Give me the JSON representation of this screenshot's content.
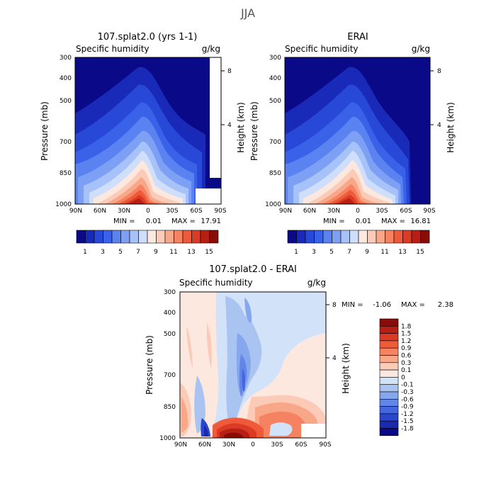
{
  "suptitle": "JJA",
  "chart_data": [
    {
      "type": "heatmap",
      "title": "107.splat2.0 (yrs 1-1)",
      "subtitle_left": "Specific humidity",
      "subtitle_right": "g/kg",
      "ylabel": "Pressure (mb)",
      "ylabel_right": "Height (km)",
      "x_ticks": [
        "90N",
        "60N",
        "30N",
        "0",
        "30S",
        "60S",
        "90S"
      ],
      "y_ticks": [
        "300",
        "400",
        "500",
        "700",
        "850",
        "1000"
      ],
      "y_ticks_right": [
        "8",
        "4"
      ],
      "min_label": "MIN =",
      "min": "0.01",
      "max_label": "MAX =",
      "max": "17.91",
      "colorbar_labels": [
        "1",
        "3",
        "5",
        "7",
        "9",
        "11",
        "13",
        "15"
      ],
      "colors": [
        "#0a0a88",
        "#1a2ab8",
        "#2848d8",
        "#3a62e8",
        "#5a82f0",
        "#7ea0f4",
        "#a6c2f8",
        "#cfdffb",
        "#fde8df",
        "#fbcbb8",
        "#f8a888",
        "#f58260",
        "#ee5a3a",
        "#db3a24",
        "#b81f14",
        "#8a0c08"
      ]
    },
    {
      "type": "heatmap",
      "title": "ERAI",
      "subtitle_left": "Specific humidity",
      "subtitle_right": "g/kg",
      "ylabel": "Pressure (mb)",
      "ylabel_right": "Height (km)",
      "x_ticks": [
        "90N",
        "60N",
        "30N",
        "0",
        "30S",
        "60S",
        "90S"
      ],
      "y_ticks": [
        "300",
        "400",
        "500",
        "700",
        "850",
        "1000"
      ],
      "y_ticks_right": [
        "8",
        "4"
      ],
      "min_label": "MIN =",
      "min": "0.01",
      "max_label": "MAX =",
      "max": "16.81",
      "colorbar_labels": [
        "1",
        "3",
        "5",
        "7",
        "9",
        "11",
        "13",
        "15"
      ]
    },
    {
      "type": "heatmap",
      "title": "107.splat2.0 - ERAI",
      "subtitle_left": "Specific humidity",
      "subtitle_right": "g/kg",
      "ylabel": "Pressure (mb)",
      "ylabel_right": "Height (km)",
      "x_ticks": [
        "90N",
        "60N",
        "30N",
        "0",
        "30S",
        "60S",
        "90S"
      ],
      "y_ticks": [
        "300",
        "400",
        "500",
        "700",
        "850",
        "1000"
      ],
      "y_ticks_right": [
        "8",
        "4"
      ],
      "min_label": "MIN =",
      "min": "-1.06",
      "max_label": "MAX =",
      "max": "2.38",
      "colorbar_labels": [
        "1.8",
        "1.5",
        "1.2",
        "0.9",
        "0.6",
        "0.3",
        "0.1",
        "0",
        "-0.1",
        "-0.3",
        "-0.6",
        "-0.9",
        "-1.2",
        "-1.5",
        "-1.8"
      ],
      "colors": [
        "#8a0c08",
        "#b81f14",
        "#db3a24",
        "#ee5a3a",
        "#f58260",
        "#f8a888",
        "#fbcbb8",
        "#fde8df",
        "#d2e2f8",
        "#aac4f2",
        "#86a6ee",
        "#6286e8",
        "#4466e0",
        "#2a46cc",
        "#1a2ab0",
        "#0a0a88"
      ]
    }
  ]
}
